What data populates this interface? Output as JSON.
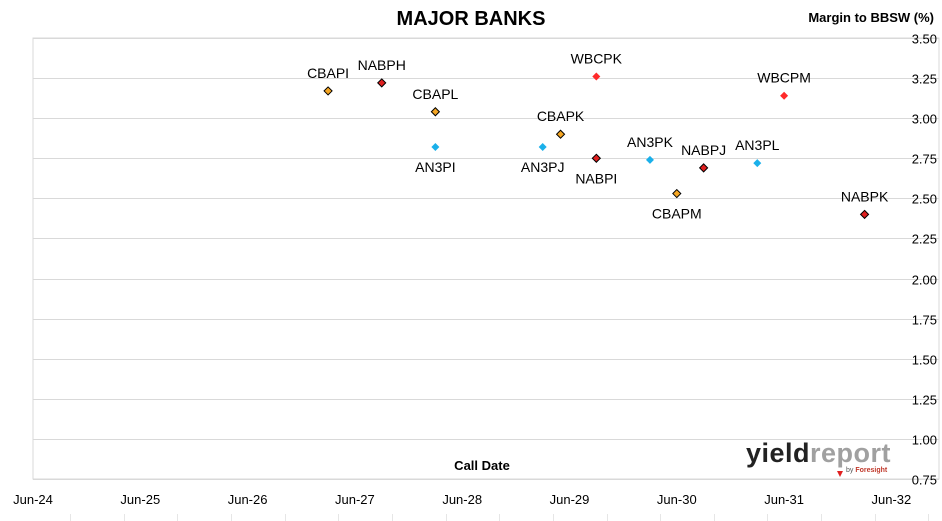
{
  "chart_data": {
    "type": "scatter",
    "title": "MAJOR BANKS",
    "ylabel": "Margin to BBSW (%)",
    "xlabel": "Call Date",
    "ylim": [
      0.75,
      3.5
    ],
    "yticks": [
      "0.75",
      "1.00",
      "1.25",
      "1.50",
      "1.75",
      "2.00",
      "2.25",
      "2.50",
      "2.75",
      "3.00",
      "3.25",
      "3.50"
    ],
    "xticks": [
      "Jun-24",
      "Jun-25",
      "Jun-26",
      "Jun-27",
      "Jun-28",
      "Jun-29",
      "Jun-30",
      "Jun-31",
      "Jun-32"
    ],
    "grid": "horizontal",
    "series": [
      {
        "color": "#f5a623",
        "marker": "diamond-outlined",
        "points": [
          {
            "label": "CBAPI",
            "call_date": "2027-03",
            "y": 3.17,
            "label_pos": "above"
          },
          {
            "label": "CBAPL",
            "call_date": "2028-03",
            "y": 3.04,
            "label_pos": "above"
          },
          {
            "label": "CBAPK",
            "call_date": "2029-05",
            "y": 2.9,
            "label_pos": "above"
          },
          {
            "label": "CBAPM",
            "call_date": "2030-06",
            "y": 2.53,
            "label_pos": "below"
          }
        ]
      },
      {
        "color": "#e02020",
        "marker": "diamond-outlined",
        "points": [
          {
            "label": "NABPH",
            "call_date": "2027-09",
            "y": 3.22,
            "label_pos": "above"
          },
          {
            "label": "NABPI",
            "call_date": "2029-09",
            "y": 2.75,
            "label_pos": "below"
          },
          {
            "label": "NABPJ",
            "call_date": "2030-09",
            "y": 2.69,
            "label_pos": "above"
          },
          {
            "label": "NABPK",
            "call_date": "2032-03",
            "y": 2.4,
            "label_pos": "above"
          }
        ]
      },
      {
        "color": "#ff2a2a",
        "marker": "diamond",
        "points": [
          {
            "label": "WBCPK",
            "call_date": "2029-09",
            "y": 3.26,
            "label_pos": "above"
          },
          {
            "label": "WBCPM",
            "call_date": "2031-06",
            "y": 3.14,
            "label_pos": "above"
          }
        ]
      },
      {
        "color": "#1ab0ea",
        "marker": "diamond",
        "points": [
          {
            "label": "AN3PI",
            "call_date": "2028-03",
            "y": 2.82,
            "label_pos": "below"
          },
          {
            "label": "AN3PJ",
            "call_date": "2029-03",
            "y": 2.82,
            "label_pos": "below"
          },
          {
            "label": "AN3PK",
            "call_date": "2030-03",
            "y": 2.74,
            "label_pos": "above"
          },
          {
            "label": "AN3PL",
            "call_date": "2031-03",
            "y": 2.72,
            "label_pos": "above"
          }
        ]
      }
    ]
  },
  "logo": {
    "brand_part1": "yield",
    "brand_part2": "report",
    "by": "by",
    "company": "Foresight"
  }
}
